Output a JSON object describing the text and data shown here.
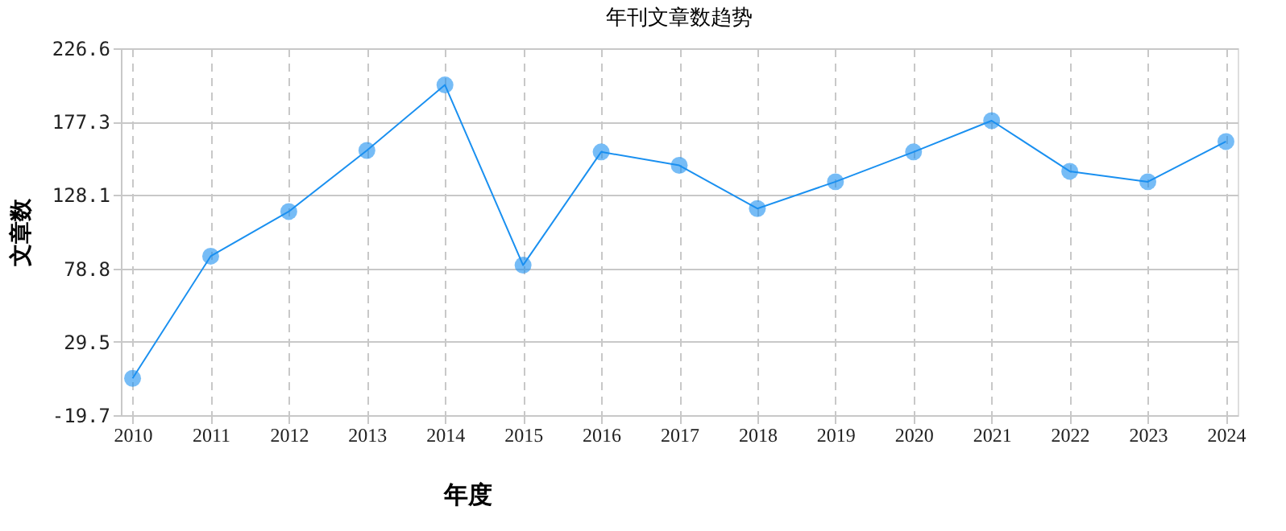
{
  "chart_data": {
    "type": "line",
    "title": "年刊文章数趋势",
    "xlabel": "年度",
    "ylabel": "文章数",
    "categories": [
      "2010",
      "2011",
      "2012",
      "2013",
      "2014",
      "2015",
      "2016",
      "2017",
      "2018",
      "2019",
      "2020",
      "2021",
      "2022",
      "2023",
      "2024"
    ],
    "series": [
      {
        "color": "#1a90f0",
        "values": [
          5,
          87,
          117,
          158,
          202,
          81,
          157,
          148,
          119,
          137,
          157,
          178,
          144,
          137,
          164
        ]
      }
    ],
    "ylim": [
      -19.7,
      226.6
    ],
    "yticks": [
      -19.7,
      29.5,
      78.8,
      128.1,
      177.3,
      226.6
    ],
    "grid": true,
    "marker": "circle",
    "line_style": "solid"
  }
}
